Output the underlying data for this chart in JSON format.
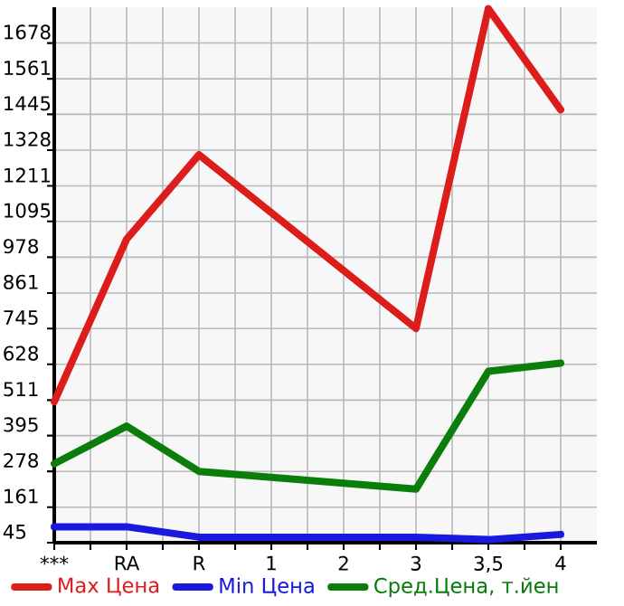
{
  "chart_data": {
    "type": "line",
    "categories": [
      "***",
      "RA",
      "R",
      "1",
      "2",
      "3",
      "3,5",
      "4"
    ],
    "series": [
      {
        "name": "Max Цена",
        "color": "#dd1c1c",
        "values": [
          506,
          1037,
          1313,
          null,
          null,
          745,
          1790,
          1460
        ]
      },
      {
        "name": "Min Цена",
        "color": "#1a1adf",
        "values": [
          97,
          97,
          63,
          null,
          null,
          63,
          55,
          72
        ]
      },
      {
        "name": "Сред.Цена, т.йен",
        "color": "#0a7d0a",
        "values": [
          303,
          426,
          278,
          null,
          null,
          220,
          605,
          632
        ]
      }
    ],
    "ylim": [
      45,
      1795
    ],
    "yticks": [
      45,
      161,
      278,
      395,
      511,
      628,
      745,
      861,
      978,
      1095,
      1211,
      1328,
      1445,
      1561,
      1678
    ],
    "grid": true,
    "legend": "bottom",
    "marker": "none",
    "line_style": "solid"
  }
}
